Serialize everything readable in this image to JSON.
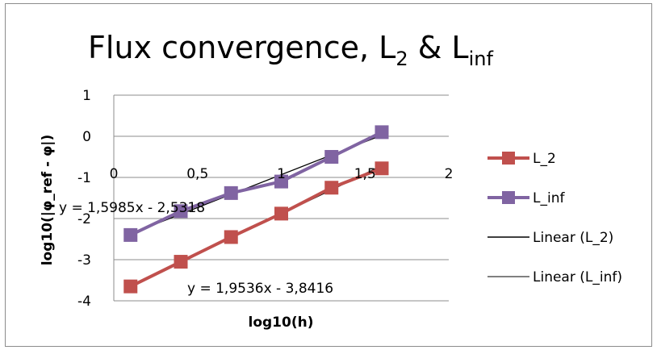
{
  "chart_data": {
    "type": "scatter",
    "title": "Flux convergence, L",
    "title_sub_1": "2",
    "title_mid": " & L",
    "title_sub_2": "inf",
    "xlabel": "log10(h)",
    "ylabel": "log10(|φ_ref - φ|)",
    "xlim": [
      0,
      2
    ],
    "ylim": [
      -4,
      1
    ],
    "x_ticks": [
      "0",
      "0,5",
      "1",
      "1,5",
      "2"
    ],
    "y_ticks": [
      "1",
      "0",
      "-1",
      "-2",
      "-3",
      "-4"
    ],
    "grid": "horizontal",
    "legend_position": "right",
    "series": [
      {
        "name": "L_2",
        "color": "#c0504d",
        "marker": "square",
        "x": [
          0.1,
          0.4,
          0.7,
          1.0,
          1.3,
          1.6
        ],
        "y": [
          -3.65,
          -3.05,
          -2.45,
          -1.88,
          -1.25,
          -0.78
        ]
      },
      {
        "name": "L_inf",
        "color": "#8064a2",
        "marker": "square",
        "x": [
          0.1,
          0.4,
          0.7,
          1.0,
          1.3,
          1.6
        ],
        "y": [
          -2.4,
          -1.82,
          -1.38,
          -1.1,
          -0.5,
          0.1
        ]
      }
    ],
    "trendlines": [
      {
        "name": "Linear (L_2)",
        "slope": 1.9536,
        "intercept": -3.8416,
        "equation": "y = 1,9536x - 3,8416",
        "color": "#000000"
      },
      {
        "name": "Linear (L_inf)",
        "slope": 1.5985,
        "intercept": -2.5318,
        "equation": "y = 1,5985x - 2,5318",
        "color": "#000000"
      }
    ]
  }
}
